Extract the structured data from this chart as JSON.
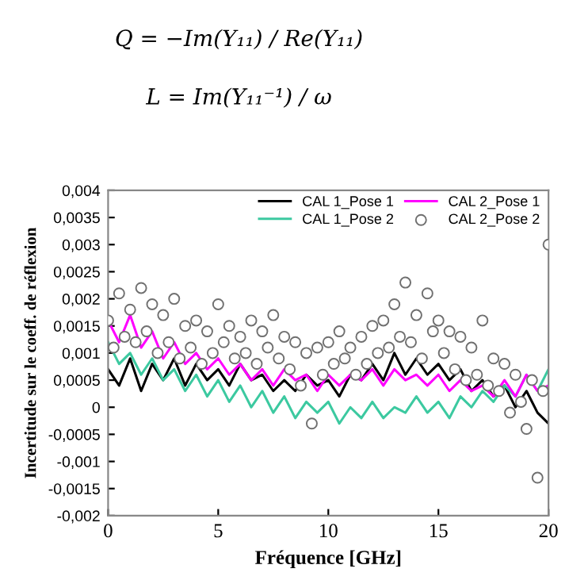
{
  "chart_data": {
    "type": "line",
    "xlabel": "Fréquence [GHz]",
    "ylabel": "Incertitude sur le coeff. de réflexion",
    "annotations": [
      "Q = −Im(Y₁₁) / Re(Y₁₁)",
      "L = Im(Y₁₁⁻¹) / ω"
    ],
    "x": [
      0,
      0.5,
      1,
      1.5,
      2,
      2.5,
      3,
      3.5,
      4,
      4.5,
      5,
      5.5,
      6,
      6.5,
      7,
      7.5,
      8,
      8.5,
      9,
      9.5,
      10,
      10.5,
      11,
      11.5,
      12,
      12.5,
      13,
      13.5,
      14,
      14.5,
      15,
      15.5,
      16,
      16.5,
      17,
      17.5,
      18,
      18.5,
      19,
      19.5,
      20
    ],
    "series": [
      {
        "name": "CAL 1_Pose 1",
        "color": "#000000",
        "values": [
          0.0007,
          0.0004,
          0.0009,
          0.0003,
          0.0008,
          0.0005,
          0.0009,
          0.0004,
          0.0008,
          0.0005,
          0.0007,
          0.0004,
          0.0008,
          0.0005,
          0.0006,
          0.0003,
          0.0005,
          0.0003,
          0.0006,
          0.0004,
          0.0005,
          0.0002,
          0.0006,
          0.0005,
          0.0008,
          0.0005,
          0.001,
          0.0006,
          0.0009,
          0.0006,
          0.0008,
          0.0005,
          0.0007,
          0.0003,
          0.0005,
          0.0002,
          0.0004,
          0.0,
          0.0003,
          -0.0001,
          -0.0003
        ]
      },
      {
        "name": "CAL 1_Pose 2",
        "color": "#3cc9a0",
        "values": [
          0.0012,
          0.0008,
          0.001,
          0.0006,
          0.0009,
          0.0005,
          0.0007,
          0.0003,
          0.0006,
          0.0002,
          0.0005,
          0.0001,
          0.0004,
          0.0,
          0.0003,
          -0.0001,
          0.0002,
          -0.0002,
          0.0001,
          -0.0001,
          0.0001,
          -0.0003,
          0.0,
          -0.0002,
          0.0001,
          -0.0002,
          0.0,
          -0.0001,
          0.0002,
          -0.0001,
          0.0001,
          -0.0002,
          0.0002,
          0.0,
          0.0003,
          0.0001,
          0.0004,
          0.0002,
          0.0006,
          0.0003,
          0.0007
        ]
      },
      {
        "name": "CAL 2_Pose 1",
        "color": "#ff00ff",
        "values": [
          0.0016,
          0.0012,
          0.0017,
          0.0011,
          0.0014,
          0.0009,
          0.0012,
          0.0008,
          0.001,
          0.0007,
          0.0009,
          0.0006,
          0.0008,
          0.0005,
          0.0007,
          0.0004,
          0.0007,
          0.0005,
          0.0006,
          0.0003,
          0.0006,
          0.0004,
          0.0006,
          0.0005,
          0.0007,
          0.0004,
          0.0007,
          0.0005,
          0.0006,
          0.0004,
          0.0006,
          0.0003,
          0.0005,
          0.0003,
          0.0004,
          0.0002,
          0.0005,
          0.0002,
          0.0006,
          0.0003,
          0.0004
        ]
      },
      {
        "name": "CAL 2_Pose 2",
        "type": "scatter",
        "marker": "circle",
        "color": "#707070",
        "x": [
          0,
          0.25,
          0.5,
          0.75,
          1,
          1.25,
          1.5,
          1.75,
          2,
          2.25,
          2.5,
          2.75,
          3,
          3.25,
          3.5,
          3.75,
          4,
          4.25,
          4.5,
          4.75,
          5,
          5.25,
          5.5,
          5.75,
          6,
          6.25,
          6.5,
          6.75,
          7,
          7.25,
          7.5,
          7.75,
          8,
          8.25,
          8.5,
          8.75,
          9,
          9.25,
          9.5,
          9.75,
          10,
          10.25,
          10.5,
          10.75,
          11,
          11.25,
          11.5,
          11.75,
          12,
          12.25,
          12.5,
          12.75,
          13,
          13.25,
          13.5,
          13.75,
          14,
          14.25,
          14.5,
          14.75,
          15,
          15.25,
          15.5,
          15.75,
          16,
          16.25,
          16.5,
          16.75,
          17,
          17.25,
          17.5,
          17.75,
          18,
          18.25,
          18.5,
          18.75,
          19,
          19.25,
          19.5,
          19.75,
          20
        ],
        "values": [
          0.0016,
          0.0011,
          0.0021,
          0.0013,
          0.0018,
          0.0012,
          0.0022,
          0.0014,
          0.0019,
          0.001,
          0.0017,
          0.0012,
          0.002,
          0.0009,
          0.0015,
          0.0011,
          0.0016,
          0.0008,
          0.0014,
          0.001,
          0.0019,
          0.0012,
          0.0015,
          0.0009,
          0.0013,
          0.001,
          0.0016,
          0.0008,
          0.0014,
          0.0011,
          0.0017,
          0.0009,
          0.0013,
          0.0007,
          0.0012,
          0.0004,
          0.001,
          -0.0003,
          0.0011,
          0.0006,
          0.0012,
          0.0008,
          0.0014,
          0.0009,
          0.0011,
          0.0006,
          0.0013,
          0.0008,
          0.0015,
          0.001,
          0.0016,
          0.0011,
          0.0019,
          0.0013,
          0.0023,
          0.0012,
          0.0017,
          0.0009,
          0.0021,
          0.0014,
          0.0016,
          0.001,
          0.0014,
          0.0007,
          0.0013,
          0.0005,
          0.0011,
          0.0006,
          0.0016,
          0.0004,
          0.0009,
          0.0003,
          0.0008,
          -0.0001,
          0.0006,
          0.0001,
          -0.0004,
          0.0005,
          -0.0013,
          0.0003,
          0.003
        ]
      }
    ],
    "xlim": [
      0,
      20
    ],
    "xticks": [
      0,
      5,
      10,
      15,
      20
    ],
    "ylim": [
      -0.002,
      0.004
    ],
    "yticks": [
      {
        "value": -0.002,
        "label": "-0,002"
      },
      {
        "value": -0.0015,
        "label": "-0,0015"
      },
      {
        "value": -0.001,
        "label": "-0,001"
      },
      {
        "value": -0.0005,
        "label": "-0,0005"
      },
      {
        "value": 0,
        "label": "0"
      },
      {
        "value": 0.0005,
        "label": "0,0005"
      },
      {
        "value": 0.001,
        "label": "0,001"
      },
      {
        "value": 0.0015,
        "label": "0,0015"
      },
      {
        "value": 0.002,
        "label": "0,002"
      },
      {
        "value": 0.0025,
        "label": "0,0025"
      },
      {
        "value": 0.003,
        "label": "0,003"
      },
      {
        "value": 0.0035,
        "label": "0,0035"
      },
      {
        "value": 0.004,
        "label": "0,004"
      }
    ],
    "legend": "top right",
    "grid": false
  }
}
